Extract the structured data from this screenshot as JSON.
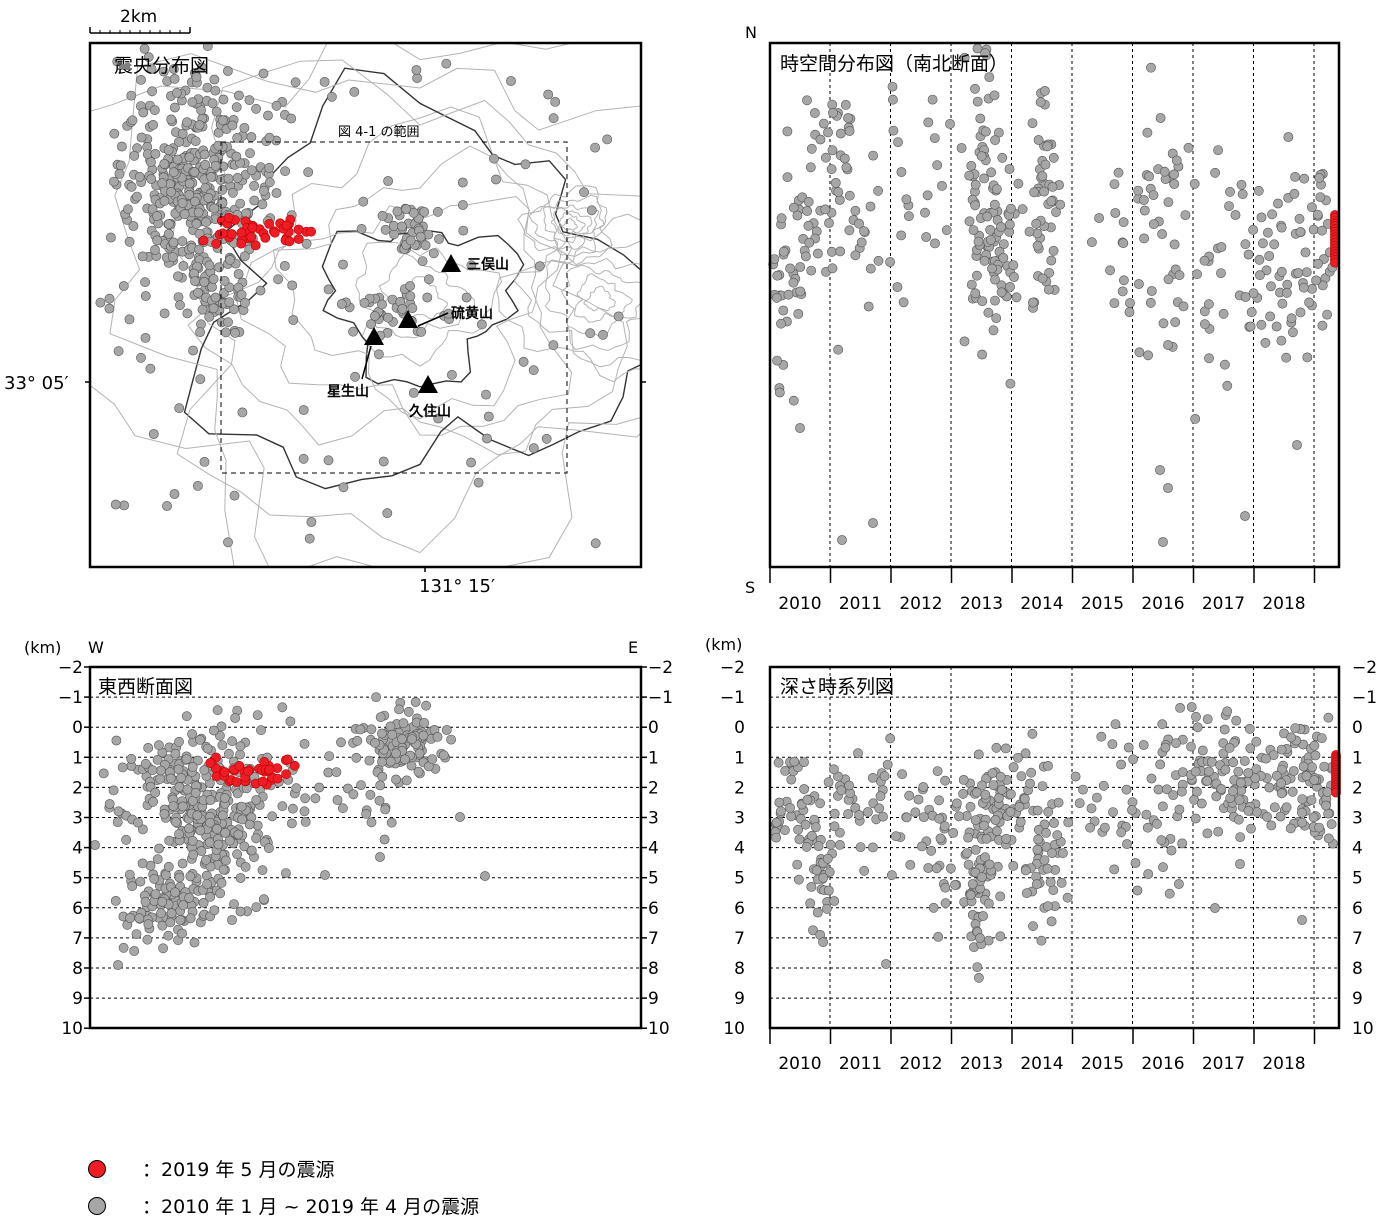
{
  "colors": {
    "may2019": "#ee1c25",
    "previous": "#a6a6a6",
    "marker_edge": "#555555",
    "contour": "#b3b3b3",
    "contour_dark": "#333333"
  },
  "map": {
    "title": "震央分布図",
    "scale_label": "2km",
    "lat_label": "33° 05′",
    "lon_label": "131° 15′",
    "fig_range_label": "図 4-1 の範囲",
    "peaks": [
      {
        "name": "三俣山"
      },
      {
        "name": "硫黄山"
      },
      {
        "name": "星生山"
      },
      {
        "name": "久住山"
      }
    ]
  },
  "ns_panel": {
    "title": "時空間分布図（南北断面）",
    "north": "N",
    "south": "S"
  },
  "ew_panel": {
    "title": "東西断面図",
    "unit": "(km)",
    "west": "W",
    "east": "E"
  },
  "depth_panel": {
    "title": "深さ時系列図",
    "unit": "(km)"
  },
  "legend": {
    "may2019": "：2019 年 5 月の震源",
    "previous": "：2010 年 1 月 ~ 2019 年 4 月の震源"
  },
  "chart_data": [
    {
      "type": "scatter",
      "title": "震央分布図",
      "series": [
        {
          "name": "2019 年 5 月の震源",
          "points": [
            [
              131.206,
              33.122
            ],
            [
              131.208,
              33.123
            ],
            [
              131.211,
              33.121
            ],
            [
              131.214,
              33.122
            ],
            [
              131.217,
              33.123
            ],
            [
              131.219,
              33.121
            ],
            [
              131.212,
              33.119
            ],
            [
              131.216,
              33.12
            ],
            [
              131.22,
              33.124
            ],
            [
              131.209,
              33.12
            ],
            [
              131.205,
              33.117
            ]
          ]
        },
        {
          "name": "2010 年 1 月 ~ 2019 年 4 月の震源",
          "points": [
            [
              131.192,
              33.135
            ],
            [
              131.195,
              33.132
            ],
            [
              131.198,
              33.128
            ],
            [
              131.2,
              33.124
            ],
            [
              131.201,
              33.118
            ],
            [
              131.203,
              33.112
            ],
            [
              131.205,
              33.108
            ],
            [
              131.197,
              33.14
            ],
            [
              131.19,
              33.125
            ],
            [
              131.235,
              33.118
            ],
            [
              131.239,
              33.115
            ],
            [
              131.243,
              33.104
            ],
            [
              131.24,
              33.1
            ],
            [
              131.232,
              33.102
            ],
            [
              131.25,
              33.112
            ],
            [
              131.226,
              33.087
            ],
            [
              131.186,
              33.094
            ],
            [
              131.218,
              33.07
            ]
          ]
        }
      ]
    },
    {
      "type": "scatter",
      "title": "時空間分布図（南北断面）",
      "x_ticks": [
        "2010",
        "2011",
        "2012",
        "2013",
        "2014",
        "2015",
        "2016",
        "2017",
        "2018"
      ],
      "xlim": [
        2009.8,
        2019.45
      ],
      "ylabel_top": "N",
      "ylabel_bottom": "S"
    },
    {
      "type": "scatter",
      "title": "東西断面図",
      "ylabel": "(km)",
      "ylim": [
        -2,
        10
      ],
      "y_ticks": [
        "-2",
        "-1",
        "0",
        "1",
        "2",
        "3",
        "4",
        "5",
        "6",
        "7",
        "8",
        "9",
        "10"
      ],
      "xlabel_left": "W",
      "xlabel_right": "E"
    },
    {
      "type": "scatter",
      "title": "深さ時系列図",
      "ylabel": "(km)",
      "ylim": [
        -2,
        10
      ],
      "y_ticks": [
        "-2",
        "-1",
        "0",
        "1",
        "2",
        "3",
        "4",
        "5",
        "6",
        "7",
        "8",
        "9",
        "10"
      ],
      "x_ticks": [
        "2010",
        "2011",
        "2012",
        "2013",
        "2014",
        "2015",
        "2016",
        "2017",
        "2018"
      ],
      "xlim": [
        2009.8,
        2019.45
      ]
    }
  ]
}
